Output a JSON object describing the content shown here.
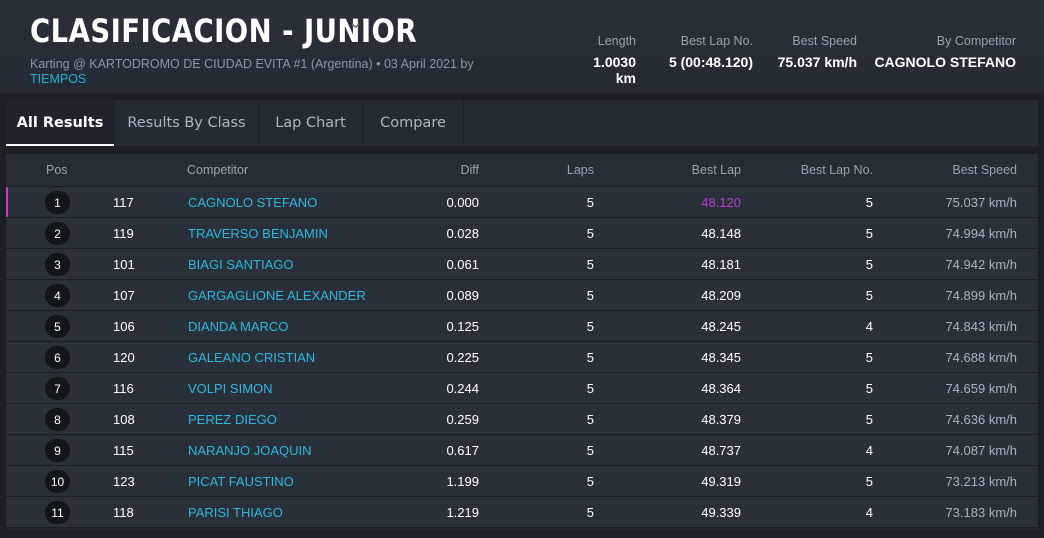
{
  "header": {
    "title": "CLASIFICACION - JUNIOR",
    "chevron": "⌄",
    "subtitle_prefix": "Karting @ KARTODROMO DE CIUDAD EVITA #1 (Argentina) • 03 April 2021 by ",
    "subtitle_link": "TIEMPOS",
    "stats": [
      {
        "label": "Length",
        "value": "1.0030 km"
      },
      {
        "label": "Best Lap No.",
        "value": "5 (00:48.120)"
      },
      {
        "label": "Best Speed",
        "value": "75.037 km/h"
      },
      {
        "label": "By Competitor",
        "value": "CAGNOLO STEFANO"
      }
    ]
  },
  "tabs": [
    {
      "label": "All Results",
      "active": true
    },
    {
      "label": "Results By Class"
    },
    {
      "label": "Lap Chart"
    },
    {
      "label": "Compare"
    }
  ],
  "columns": {
    "pos": "Pos",
    "competitor": "Competitor",
    "diff": "Diff",
    "laps": "Laps",
    "best_lap": "Best Lap",
    "best_lap_no": "Best Lap No.",
    "best_speed": "Best Speed"
  },
  "rows": [
    {
      "pos": "1",
      "num": "117",
      "name": "CAGNOLO STEFANO",
      "diff": "0.000",
      "laps": "5",
      "best_lap": "48.120",
      "best_lap_no": "5",
      "speed": "75.037 km/h"
    },
    {
      "pos": "2",
      "num": "119",
      "name": "TRAVERSO BENJAMIN",
      "diff": "0.028",
      "laps": "5",
      "best_lap": "48.148",
      "best_lap_no": "5",
      "speed": "74.994 km/h"
    },
    {
      "pos": "3",
      "num": "101",
      "name": "BIAGI SANTIAGO",
      "diff": "0.061",
      "laps": "5",
      "best_lap": "48.181",
      "best_lap_no": "5",
      "speed": "74.942 km/h"
    },
    {
      "pos": "4",
      "num": "107",
      "name": "GARGAGLIONE ALEXANDER",
      "diff": "0.089",
      "laps": "5",
      "best_lap": "48.209",
      "best_lap_no": "5",
      "speed": "74.899 km/h"
    },
    {
      "pos": "5",
      "num": "106",
      "name": "DIANDA MARCO",
      "diff": "0.125",
      "laps": "5",
      "best_lap": "48.245",
      "best_lap_no": "4",
      "speed": "74.843 km/h"
    },
    {
      "pos": "6",
      "num": "120",
      "name": "GALEANO CRISTIAN",
      "diff": "0.225",
      "laps": "5",
      "best_lap": "48.345",
      "best_lap_no": "5",
      "speed": "74.688 km/h"
    },
    {
      "pos": "7",
      "num": "116",
      "name": "VOLPI SIMON",
      "diff": "0.244",
      "laps": "5",
      "best_lap": "48.364",
      "best_lap_no": "5",
      "speed": "74.659 km/h"
    },
    {
      "pos": "8",
      "num": "108",
      "name": "PEREZ DIEGO",
      "diff": "0.259",
      "laps": "5",
      "best_lap": "48.379",
      "best_lap_no": "5",
      "speed": "74.636 km/h"
    },
    {
      "pos": "9",
      "num": "115",
      "name": "NARANJO JOAQUIN",
      "diff": "0.617",
      "laps": "5",
      "best_lap": "48.737",
      "best_lap_no": "4",
      "speed": "74.087 km/h"
    },
    {
      "pos": "10",
      "num": "123",
      "name": "PICAT FAUSTINO",
      "diff": "1.199",
      "laps": "5",
      "best_lap": "49.319",
      "best_lap_no": "5",
      "speed": "73.213 km/h"
    },
    {
      "pos": "11",
      "num": "118",
      "name": "PARISI THIAGO",
      "diff": "1.219",
      "laps": "5",
      "best_lap": "49.339",
      "best_lap_no": "4",
      "speed": "73.183 km/h"
    }
  ],
  "colors": {
    "accent": "#2fb7dd",
    "best_lap_highlight": "#b43fcf",
    "background": "#1b1f26"
  }
}
